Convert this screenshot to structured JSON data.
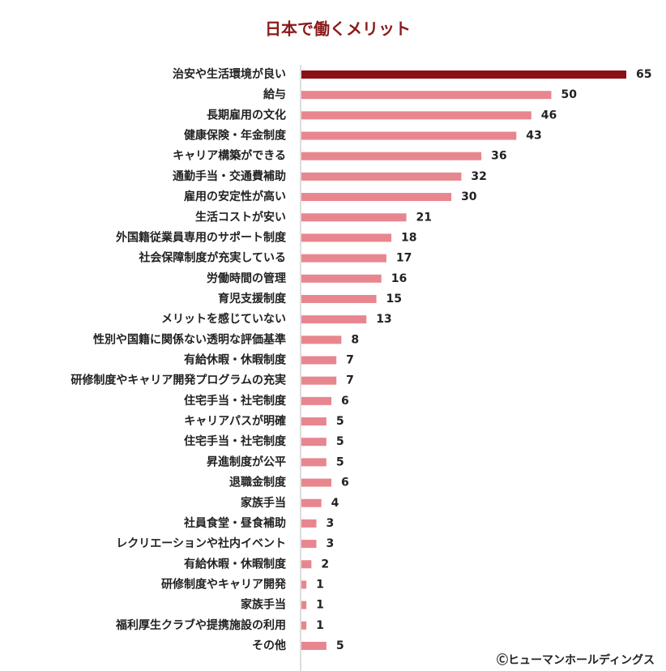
{
  "chart_data": {
    "type": "bar",
    "orientation": "horizontal",
    "title": "日本で働くメリット",
    "categories": [
      "治安や生活環境が良い",
      "給与",
      "長期雇用の文化",
      "健康保険・年金制度",
      "キャリア構築ができる",
      "通勤手当・交通費補助",
      "雇用の安定性が高い",
      "生活コストが安い",
      "外国籍従業員専用のサポート制度",
      "社会保障制度が充実している",
      "労働時間の管理",
      "育児支援制度",
      "メリットを感じていない",
      "性別や国籍に関係ない透明な評価基準",
      "有給休暇・休暇制度",
      "研修制度やキャリア開発プログラムの充実",
      "住宅手当・社宅制度",
      "キャリアパスが明確",
      "住宅手当・社宅制度",
      "昇進制度が公平",
      "退職金制度",
      "家族手当",
      "社員食堂・昼食補助",
      "レクリエーションや社内イベント",
      "有給休暇・休暇制度",
      "研修制度やキャリア開発",
      "家族手当",
      "福利厚生クラブや提携施設の利用",
      "その他"
    ],
    "values": [
      65,
      50,
      46,
      43,
      36,
      32,
      30,
      21,
      18,
      17,
      16,
      15,
      13,
      8,
      7,
      7,
      6,
      5,
      5,
      5,
      6,
      4,
      3,
      3,
      2,
      1,
      1,
      1,
      5
    ],
    "colors": [
      "#8b0f17",
      "#e8868f",
      "#e8868f",
      "#e8868f",
      "#e8868f",
      "#e8868f",
      "#e8868f",
      "#e8868f",
      "#e8868f",
      "#e8868f",
      "#e8868f",
      "#e8868f",
      "#e8868f",
      "#e8868f",
      "#e8868f",
      "#e8868f",
      "#e8868f",
      "#e8868f",
      "#e8868f",
      "#e8868f",
      "#e8868f",
      "#e8868f",
      "#e8868f",
      "#e8868f",
      "#e8868f",
      "#e8868f",
      "#e8868f",
      "#e8868f",
      "#e8868f"
    ],
    "source": "Ⓒヒューマンホールディングス"
  }
}
